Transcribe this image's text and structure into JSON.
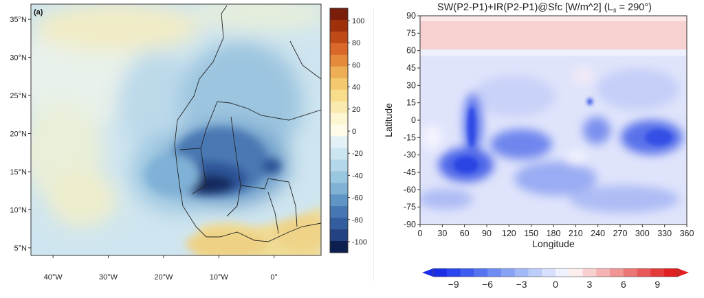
{
  "chart_data": [
    {
      "type": "heatmap",
      "panel_label": "(a)",
      "title": "",
      "xlabel": "",
      "ylabel": "",
      "x_ticks": [
        "40°W",
        "30°W",
        "20°W",
        "10°W",
        "0°"
      ],
      "x_tick_values": [
        -40,
        -30,
        -20,
        -10,
        0
      ],
      "y_ticks": [
        "35°N",
        "30°N",
        "25°N",
        "20°N",
        "15°N",
        "10°N",
        "5°N"
      ],
      "y_tick_values": [
        35,
        30,
        25,
        20,
        15,
        10,
        5
      ],
      "xlim": [
        -44,
        8.5
      ],
      "ylim": [
        4,
        37
      ],
      "colorbar": {
        "orientation": "vertical",
        "labels": [
          "100",
          "80",
          "60",
          "40",
          "20",
          "0",
          "-20",
          "-40",
          "-60",
          "-80",
          "-100"
        ],
        "levels": [
          100,
          80,
          60,
          40,
          20,
          0,
          -20,
          -40,
          -60,
          -80,
          -100
        ],
        "colors": [
          "#7a1e0b",
          "#9e300c",
          "#c04a17",
          "#d9682a",
          "#e58a3a",
          "#edae55",
          "#f3c86e",
          "#f8dd8d",
          "#fbeab0",
          "#fdf6d3",
          "#fefce8",
          "#e3f1f7",
          "#cce6f1",
          "#b4d8ea",
          "#9ac7e0",
          "#7fb2d4",
          "#5f95c4",
          "#4677b2",
          "#335d9e",
          "#244282",
          "#0d1f4f"
        ]
      },
      "field_description_values": {
        "min_region": {
          "lon": -13,
          "lat": 14,
          "value": -100
        },
        "max_region": {
          "lon": -2,
          "lat": 7,
          "value": 30
        }
      }
    },
    {
      "type": "heatmap",
      "title": "SW(P2-P1)+IR(P2-P1)@Sfc [W/m^2] (L",
      "title_sub": "s",
      "title_end": " = 290°)",
      "xlabel": "Longitude",
      "ylabel": "Latitude",
      "x_ticks": [
        "0",
        "30",
        "60",
        "90",
        "120",
        "150",
        "180",
        "210",
        "240",
        "270",
        "300",
        "330",
        "360"
      ],
      "x_tick_values": [
        0,
        30,
        60,
        90,
        120,
        150,
        180,
        210,
        240,
        270,
        300,
        330,
        360
      ],
      "y_ticks": [
        "90",
        "75",
        "60",
        "45",
        "30",
        "15",
        "0",
        "-15",
        "-30",
        "-45",
        "-60",
        "-75",
        "-90"
      ],
      "y_tick_values": [
        90,
        75,
        60,
        45,
        30,
        15,
        0,
        -15,
        -30,
        -45,
        -60,
        -75,
        -90
      ],
      "xlim": [
        0,
        360
      ],
      "ylim": [
        -90,
        90
      ],
      "colorbar": {
        "orientation": "horizontal",
        "labels": [
          "−9",
          "−6",
          "−3",
          "0",
          "3",
          "6",
          "9"
        ],
        "levels": [
          -9,
          -6,
          -3,
          0,
          3,
          6,
          9
        ],
        "colors": [
          "#1a2ee6",
          "#2a44ee",
          "#3e5cf0",
          "#5674f2",
          "#6e8cf4",
          "#88a2f6",
          "#a2b8f8",
          "#bccdfa",
          "#d6e0fc",
          "#eef2fe",
          "#fdeeee",
          "#f9d0d0",
          "#f5b2b2",
          "#f09494",
          "#ec7676",
          "#e85858",
          "#e43a3a",
          "#e02020"
        ]
      },
      "field_description_values": {
        "north_band": {
          "lat_range": [
            62,
            88
          ],
          "value": 2
        },
        "south_minimum": {
          "lon": 70,
          "lat": -40,
          "value": -9
        }
      }
    }
  ]
}
